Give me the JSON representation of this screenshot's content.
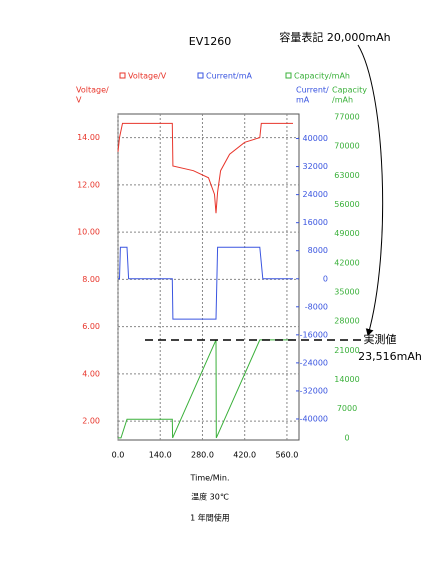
{
  "chart_data": {
    "type": "line",
    "title": "EV1260",
    "annotations": [
      "容量表記 20,000mAh",
      "実測値",
      "23,516mAh",
      "温度 30℃",
      "1 年間使用"
    ],
    "x_label": "Time/Min.",
    "xlim": [
      0,
      600
    ],
    "xticks": [
      {
        "value": 0,
        "label": "0.0"
      },
      {
        "value": 140,
        "label": "140.0"
      },
      {
        "value": 280,
        "label": "280.0"
      },
      {
        "value": 420,
        "label": "420.0"
      },
      {
        "value": 560,
        "label": "560.0"
      }
    ],
    "y_label": [
      "Voltage/",
      "V"
    ],
    "ylim": [
      1.2,
      15.0
    ],
    "yticks": [
      {
        "value": 2,
        "label": "2.00"
      },
      {
        "value": 4,
        "label": "4.00"
      },
      {
        "value": 6,
        "label": "6.00"
      },
      {
        "value": 8,
        "label": "8.00"
      },
      {
        "value": 10,
        "label": "10.00"
      },
      {
        "value": 12,
        "label": "12.00"
      },
      {
        "value": 14,
        "label": "14.00"
      }
    ],
    "y2_label": [
      "Current/",
      "mA"
    ],
    "y2lim": [
      -46000,
      47000
    ],
    "y2ticks": [
      -40000,
      -32000,
      -24000,
      -16000,
      -8000,
      0,
      8000,
      16000,
      24000,
      32000,
      40000
    ],
    "y3_label": [
      "Capacity",
      "/mAh"
    ],
    "y3lim": [
      -500,
      77700
    ],
    "y3ticks": [
      0,
      7000,
      14000,
      21000,
      28000,
      35000,
      42000,
      49000,
      56000,
      63000,
      70000,
      77000
    ],
    "grid": true,
    "series": [
      {
        "name": "Voltage/V",
        "color": "#e8352b",
        "axis": "y",
        "x": [
          0,
          5,
          15,
          180,
          182,
          250,
          300,
          320,
          325,
          330,
          340,
          370,
          420,
          470,
          475,
          580
        ],
        "values": [
          13.4,
          14.0,
          14.6,
          14.6,
          12.8,
          12.6,
          12.3,
          11.6,
          10.8,
          11.7,
          12.6,
          13.3,
          13.8,
          14.0,
          14.6,
          14.6
        ]
      },
      {
        "name": "Current/mA",
        "color": "#3a55e0",
        "axis": "y2",
        "x": [
          0,
          5,
          8,
          30,
          35,
          180,
          182,
          325,
          330,
          470,
          480,
          580
        ],
        "values": [
          0,
          0,
          9000,
          9000,
          0,
          0,
          -11500,
          -11500,
          9000,
          9000,
          0,
          0
        ]
      },
      {
        "name": "Capacity/mAh",
        "color": "#3ab03a",
        "axis": "y3",
        "x": [
          0,
          10,
          30,
          180,
          181,
          325,
          326,
          470,
          580
        ],
        "values": [
          0,
          0,
          4500,
          4500,
          0,
          23500,
          0,
          23500,
          23500
        ]
      }
    ]
  }
}
